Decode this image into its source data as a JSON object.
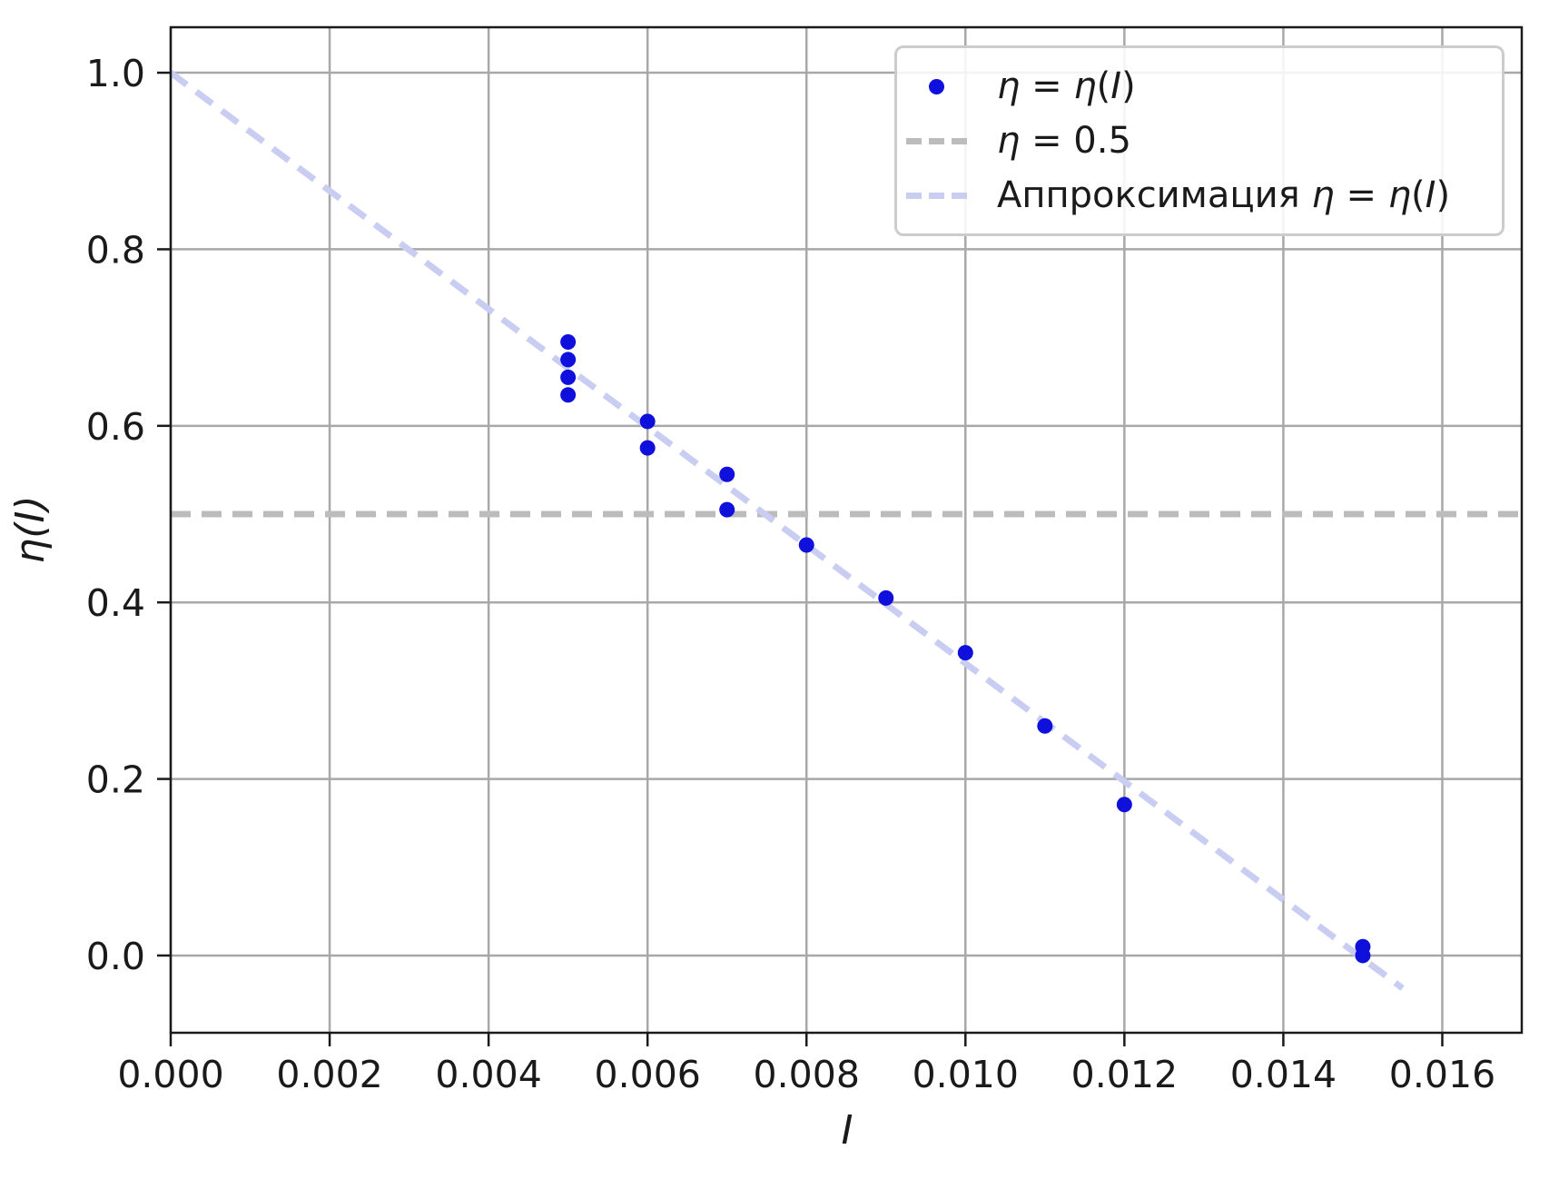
{
  "chart_data": {
    "type": "scatter",
    "title": "",
    "xlabel": "I",
    "ylabel": "η(I)",
    "xlim": [
      0,
      0.017
    ],
    "ylim": [
      -0.0875,
      1.0515
    ],
    "grid": true,
    "legend_position": "upper right",
    "colors": {
      "background": "#ffffff",
      "grid": "#a8a8a8",
      "axis": "#1a1a1a",
      "scatter": "#0f10dc",
      "threshold_line": "#bcbcbc",
      "fit_line": "#c9cdf2",
      "legend_border": "#cccccc"
    },
    "xticks": [
      0,
      0.002,
      0.004,
      0.006,
      0.008,
      0.01,
      0.012,
      0.014,
      0.016
    ],
    "xtick_labels": [
      "0.000",
      "0.002",
      "0.004",
      "0.006",
      "0.008",
      "0.010",
      "0.012",
      "0.014",
      "0.016"
    ],
    "yticks": [
      0.0,
      0.2,
      0.4,
      0.6,
      0.8,
      1.0
    ],
    "ytick_labels": [
      "0.0",
      "0.2",
      "0.4",
      "0.6",
      "0.8",
      "1.0"
    ],
    "series": [
      {
        "name": "η = η(I)",
        "type": "scatter",
        "color": "#0f10dc",
        "points": [
          [
            0.005,
            0.695
          ],
          [
            0.005,
            0.675
          ],
          [
            0.005,
            0.655
          ],
          [
            0.005,
            0.635
          ],
          [
            0.006,
            0.605
          ],
          [
            0.006,
            0.575
          ],
          [
            0.007,
            0.545
          ],
          [
            0.007,
            0.505
          ],
          [
            0.008,
            0.465
          ],
          [
            0.009,
            0.405
          ],
          [
            0.01,
            0.343
          ],
          [
            0.011,
            0.26
          ],
          [
            0.012,
            0.171
          ],
          [
            0.015,
            0.01
          ],
          [
            0.015,
            0.0
          ]
        ]
      },
      {
        "name": "η = 0.5",
        "type": "hline",
        "linestyle": "dashed",
        "color": "#bcbcbc",
        "y": 0.5
      },
      {
        "name": "Аппроксимация η = η(I)",
        "type": "line",
        "linestyle": "dashed",
        "color": "#c9cdf2",
        "x": [
          0.0,
          0.0155
        ],
        "y": [
          1.0,
          -0.037
        ]
      }
    ],
    "legend": {
      "entries": [
        {
          "marker": "dot",
          "color": "#0f10dc",
          "label": "η = η(I)",
          "segments": [
            [
              "η",
              1
            ],
            [
              " = ",
              0
            ],
            [
              "η",
              1
            ],
            [
              "(",
              0
            ],
            [
              "I",
              1
            ],
            [
              ")",
              0
            ]
          ]
        },
        {
          "marker": "dashes",
          "color": "#bcbcbc",
          "label": "η = 0.5",
          "segments": [
            [
              "η",
              1
            ],
            [
              " = 0.5",
              0
            ]
          ]
        },
        {
          "marker": "dashes",
          "color": "#c9cdf2",
          "label": "Аппроксимация η = η(I)",
          "segments": [
            [
              "Аппроксимация ",
              0
            ],
            [
              "η",
              1
            ],
            [
              " = ",
              0
            ],
            [
              "η",
              1
            ],
            [
              "(",
              0
            ],
            [
              "I",
              1
            ],
            [
              ")",
              0
            ]
          ]
        }
      ]
    }
  }
}
